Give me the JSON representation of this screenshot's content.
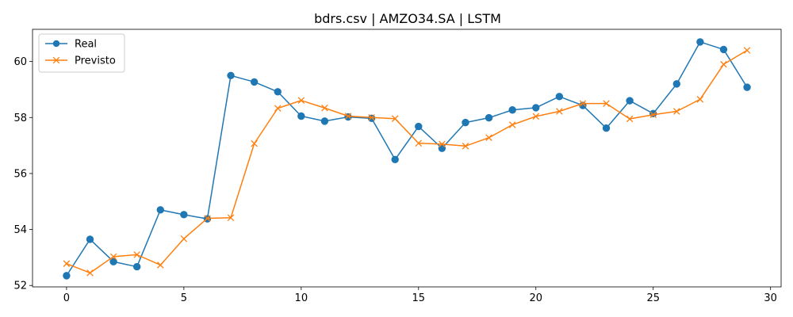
{
  "chart_data": {
    "type": "line",
    "title": "bdrs.csv | AMZO34.SA | LSTM",
    "xlabel": "",
    "ylabel": "",
    "xlim": [
      -1.45,
      30.45
    ],
    "ylim": [
      51.95,
      61.15
    ],
    "x_ticks": [
      0,
      5,
      10,
      15,
      20,
      25,
      30
    ],
    "y_ticks": [
      52,
      54,
      56,
      58,
      60
    ],
    "grid": false,
    "legend_position": "upper-left",
    "x": [
      0,
      1,
      2,
      3,
      4,
      5,
      6,
      7,
      8,
      9,
      10,
      11,
      12,
      13,
      14,
      15,
      16,
      17,
      18,
      19,
      20,
      21,
      22,
      23,
      24,
      25,
      26,
      27,
      28,
      29
    ],
    "series": [
      {
        "name": "Real",
        "color": "#1f77b4",
        "marker": "circle",
        "values": [
          52.35,
          53.65,
          52.85,
          52.67,
          54.7,
          54.53,
          54.38,
          59.5,
          59.27,
          58.92,
          58.05,
          57.87,
          58.02,
          57.97,
          56.5,
          57.68,
          56.9,
          57.82,
          57.99,
          58.27,
          58.35,
          58.75,
          58.43,
          57.62,
          58.6,
          58.14,
          59.2,
          60.7,
          60.43,
          59.08
        ]
      },
      {
        "name": "Previsto",
        "color": "#ff7f0e",
        "marker": "x",
        "values": [
          52.78,
          52.45,
          53.03,
          53.1,
          52.73,
          53.67,
          54.4,
          54.42,
          57.07,
          58.33,
          58.61,
          58.34,
          58.05,
          58.0,
          57.96,
          57.08,
          57.05,
          56.98,
          57.28,
          57.74,
          58.04,
          58.22,
          58.5,
          58.5,
          57.95,
          58.1,
          58.22,
          58.65,
          59.9,
          60.4
        ]
      }
    ]
  }
}
